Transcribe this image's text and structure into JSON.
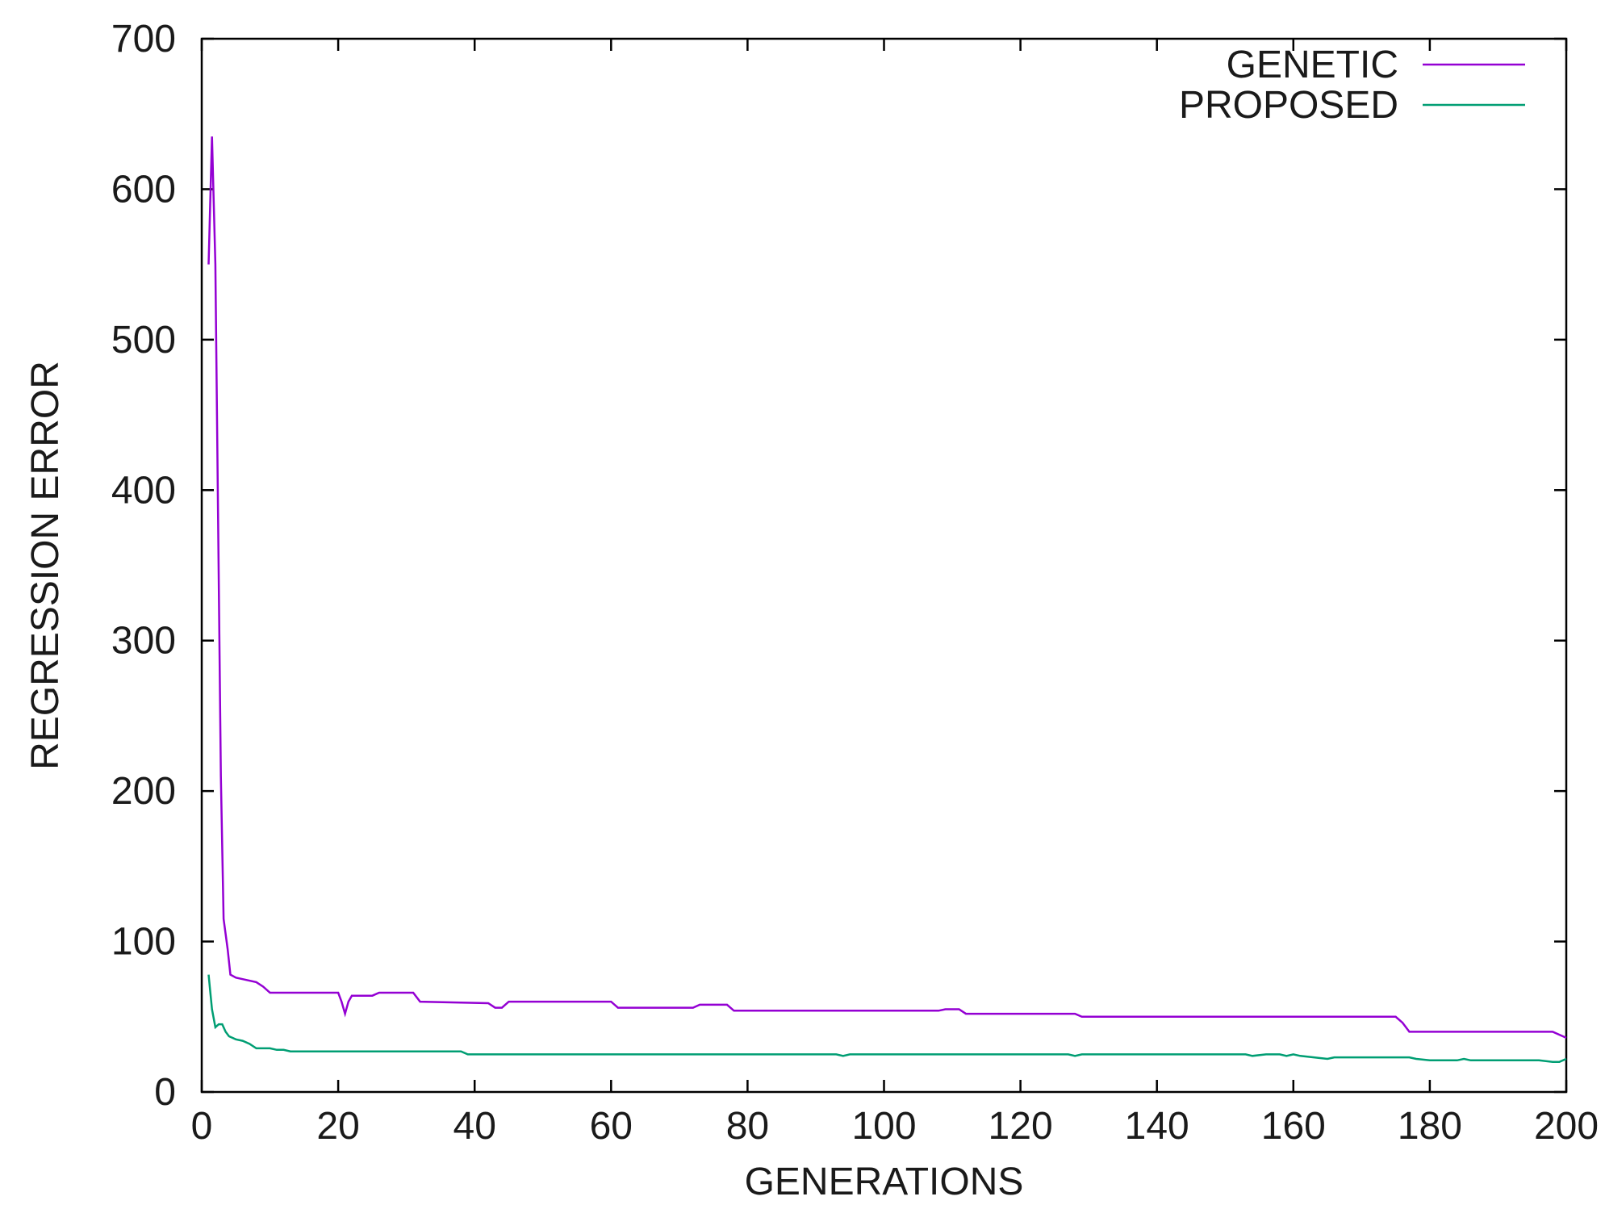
{
  "chart_data": {
    "type": "line",
    "title": "",
    "xlabel": "GENERATIONS",
    "ylabel": "REGRESSION ERROR",
    "xlim": [
      0,
      200
    ],
    "ylim": [
      0,
      700
    ],
    "xticks": [
      0,
      20,
      40,
      60,
      80,
      100,
      120,
      140,
      160,
      180,
      200
    ],
    "yticks": [
      0,
      100,
      200,
      300,
      400,
      500,
      600,
      700
    ],
    "grid": false,
    "legend_position": "top-right",
    "series": [
      {
        "name": "GENETIC",
        "color": "#9400d3",
        "points": [
          [
            1,
            550
          ],
          [
            1.5,
            635
          ],
          [
            2,
            550
          ],
          [
            2.4,
            380
          ],
          [
            2.8,
            210
          ],
          [
            3.2,
            115
          ],
          [
            3.8,
            95
          ],
          [
            4.2,
            78
          ],
          [
            5,
            76
          ],
          [
            6,
            75
          ],
          [
            8,
            73
          ],
          [
            9,
            70
          ],
          [
            10,
            66
          ],
          [
            15,
            66
          ],
          [
            20,
            66
          ],
          [
            20.5,
            60
          ],
          [
            21,
            52
          ],
          [
            21.5,
            60
          ],
          [
            22,
            64
          ],
          [
            25,
            64
          ],
          [
            26,
            66
          ],
          [
            31,
            66
          ],
          [
            32,
            60
          ],
          [
            42,
            59
          ],
          [
            43,
            56
          ],
          [
            44,
            56
          ],
          [
            45,
            60
          ],
          [
            60,
            60
          ],
          [
            61,
            56
          ],
          [
            72,
            56
          ],
          [
            73,
            58
          ],
          [
            77,
            58
          ],
          [
            78,
            54
          ],
          [
            108,
            54
          ],
          [
            109,
            55
          ],
          [
            111,
            55
          ],
          [
            112,
            52
          ],
          [
            128,
            52
          ],
          [
            129,
            50
          ],
          [
            175,
            50
          ],
          [
            176,
            46
          ],
          [
            177,
            40
          ],
          [
            198,
            40
          ],
          [
            200,
            36
          ]
        ]
      },
      {
        "name": "PROPOSED",
        "color": "#009e73",
        "points": [
          [
            1,
            78
          ],
          [
            1.5,
            55
          ],
          [
            2,
            43
          ],
          [
            2.5,
            45
          ],
          [
            3,
            45
          ],
          [
            3.5,
            40
          ],
          [
            4,
            37
          ],
          [
            5,
            35
          ],
          [
            6,
            34
          ],
          [
            7,
            32
          ],
          [
            8,
            29
          ],
          [
            10,
            29
          ],
          [
            11,
            28
          ],
          [
            12,
            28
          ],
          [
            13,
            27
          ],
          [
            38,
            27
          ],
          [
            39,
            25
          ],
          [
            93,
            25
          ],
          [
            94,
            24
          ],
          [
            95,
            25
          ],
          [
            127,
            25
          ],
          [
            128,
            24
          ],
          [
            129,
            25
          ],
          [
            153,
            25
          ],
          [
            154,
            24
          ],
          [
            156,
            25
          ],
          [
            158,
            25
          ],
          [
            159,
            24
          ],
          [
            160,
            25
          ],
          [
            161,
            24
          ],
          [
            163,
            23
          ],
          [
            165,
            22
          ],
          [
            166,
            23
          ],
          [
            177,
            23
          ],
          [
            178,
            22
          ],
          [
            180,
            21
          ],
          [
            184,
            21
          ],
          [
            185,
            22
          ],
          [
            186,
            21
          ],
          [
            196,
            21
          ],
          [
            198,
            20
          ],
          [
            199,
            20
          ],
          [
            200,
            22
          ]
        ]
      }
    ]
  }
}
